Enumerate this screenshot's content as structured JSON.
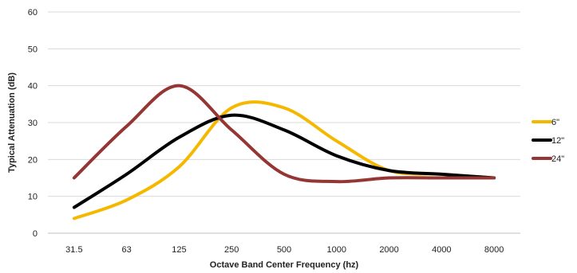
{
  "chart_data": {
    "type": "line",
    "xlabel": "Octave Band Center Frequency (hz)",
    "ylabel": "Typical  Attenuation  (dB)",
    "categories": [
      "31.5",
      "63",
      "125",
      "250",
      "500",
      "1000",
      "2000",
      "4000",
      "8000"
    ],
    "ylim": [
      0,
      60
    ],
    "yticks": [
      0,
      10,
      20,
      30,
      40,
      50,
      60
    ],
    "grid": true,
    "legend_position": "right",
    "series": [
      {
        "name": "6\"",
        "color": "#F5B800",
        "values": [
          4,
          9,
          18,
          34,
          34,
          25,
          17,
          16,
          15
        ]
      },
      {
        "name": "12\"",
        "color": "#000000",
        "values": [
          7,
          16,
          26,
          32,
          28,
          21,
          17,
          16,
          15
        ]
      },
      {
        "name": "24\"",
        "color": "#943634",
        "values": [
          15,
          29,
          40,
          28,
          16,
          14,
          15,
          15,
          15
        ]
      }
    ]
  }
}
